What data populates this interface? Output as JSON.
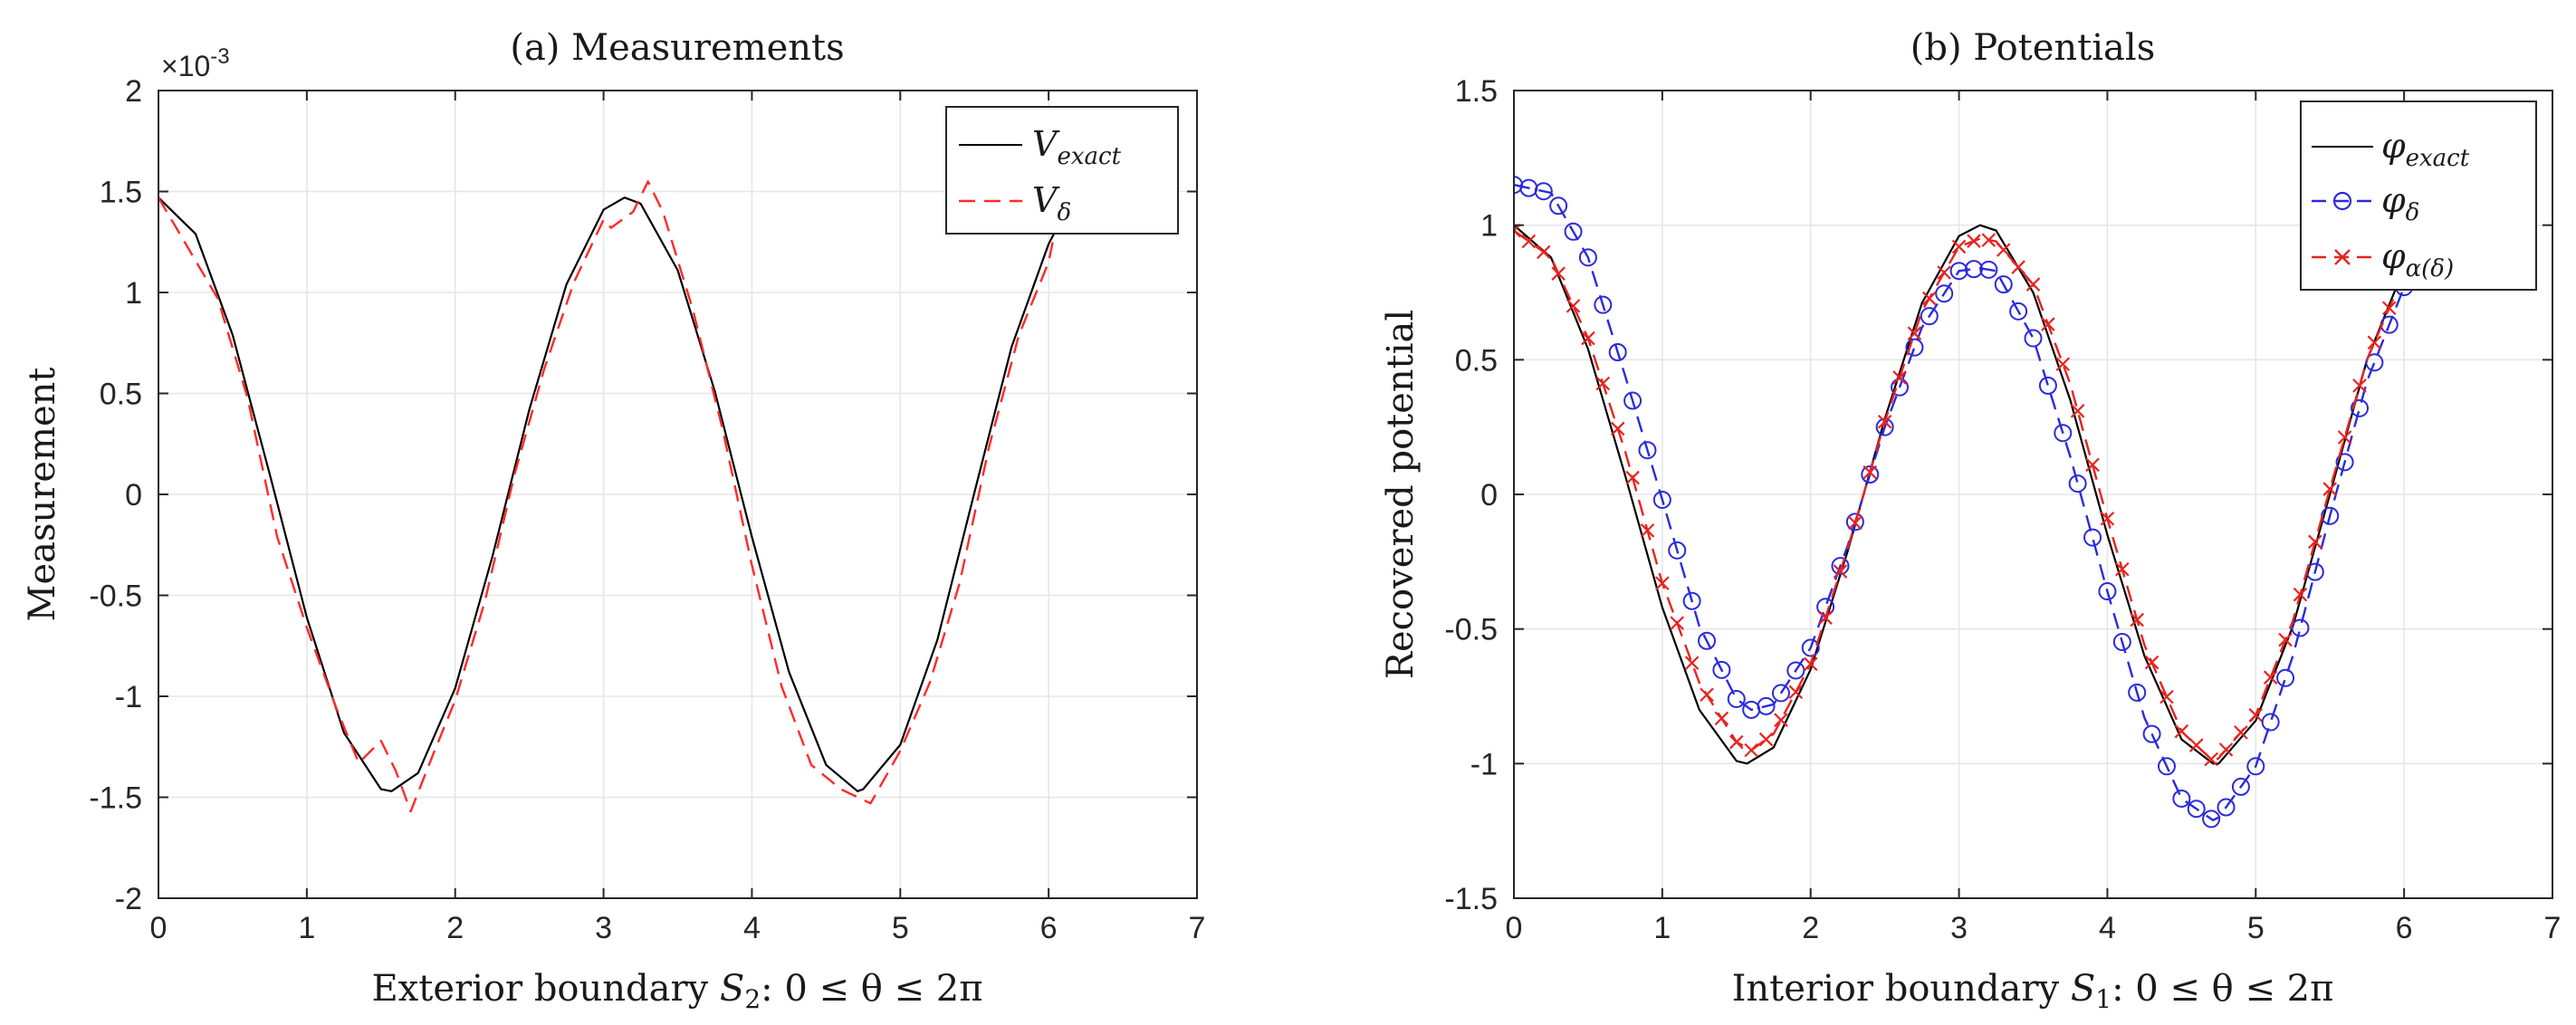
{
  "chart_data": [
    {
      "type": "line",
      "title": "(a) Measurements",
      "xlabel_prefix": "Exterior boundary ",
      "xlabel_sym": "S",
      "xlabel_sub": "2",
      "xlabel_suffix": ": 0 ≤ θ ≤ 2π",
      "ylabel": "Measurement",
      "exponent_base": "×10",
      "exponent_power": "-3",
      "xlim": [
        0,
        7
      ],
      "ylim": [
        -2,
        2
      ],
      "xticks": [
        0,
        1,
        2,
        3,
        4,
        5,
        6,
        7
      ],
      "yticks": [
        -2,
        -1.5,
        -1,
        -0.5,
        0,
        0.5,
        1,
        1.5,
        2
      ],
      "ytick_labels": [
        "-2",
        "-1.5",
        "-1",
        "-0.5",
        "0",
        "0.5",
        "1",
        "1.5",
        "2"
      ],
      "grid": true,
      "legend_position": "top-right",
      "series": [
        {
          "name": "V_exact",
          "label_main": "V",
          "label_sub": "exact",
          "color": "#000000",
          "style": "solid",
          "marker": "none",
          "function": "1.47*cos(2x)",
          "x": [
            0,
            0.25,
            0.5,
            0.75,
            1.0,
            1.25,
            1.5,
            1.571,
            1.75,
            2.0,
            2.25,
            2.5,
            2.75,
            3.0,
            3.142,
            3.25,
            3.5,
            3.75,
            4.0,
            4.25,
            4.5,
            4.712,
            4.75,
            5.0,
            5.25,
            5.5,
            5.75,
            6.0,
            6.05
          ],
          "y": [
            1.47,
            1.29,
            0.79,
            0.1,
            -0.61,
            -1.18,
            -1.46,
            -1.47,
            -1.38,
            -0.96,
            -0.31,
            0.42,
            1.04,
            1.41,
            1.47,
            1.44,
            1.11,
            0.51,
            -0.21,
            -0.88,
            -1.34,
            -1.47,
            -1.46,
            -1.24,
            -0.72,
            0.01,
            0.73,
            1.24,
            1.31
          ]
        },
        {
          "name": "V_delta",
          "label_main": "V",
          "label_sub": "δ",
          "color": "#ff2a2a",
          "style": "dashed",
          "marker": "none",
          "x": [
            0,
            0.2,
            0.4,
            0.6,
            0.8,
            1.0,
            1.2,
            1.35,
            1.5,
            1.6,
            1.7,
            1.85,
            2.0,
            2.2,
            2.4,
            2.6,
            2.8,
            3.0,
            3.05,
            3.2,
            3.3,
            3.4,
            3.6,
            3.8,
            4.0,
            4.2,
            4.4,
            4.6,
            4.8,
            5.0,
            5.2,
            5.4,
            5.6,
            5.8,
            6.0,
            6.05
          ],
          "y": [
            1.47,
            1.22,
            0.97,
            0.48,
            -0.21,
            -0.66,
            -1.06,
            -1.33,
            -1.22,
            -1.37,
            -1.57,
            -1.29,
            -1.02,
            -0.53,
            0.1,
            0.62,
            1.05,
            1.36,
            1.32,
            1.4,
            1.55,
            1.4,
            0.92,
            0.33,
            -0.35,
            -0.95,
            -1.34,
            -1.46,
            -1.53,
            -1.27,
            -0.93,
            -0.44,
            0.24,
            0.79,
            1.15,
            1.33
          ]
        }
      ]
    },
    {
      "type": "line",
      "title": "(b) Potentials",
      "xlabel_prefix": "Interior boundary ",
      "xlabel_sym": "S",
      "xlabel_sub": "1",
      "xlabel_suffix": ": 0 ≤ θ ≤ 2π",
      "ylabel": "Recovered potential",
      "xlim": [
        0,
        7
      ],
      "ylim": [
        -1.5,
        1.5
      ],
      "xticks": [
        0,
        1,
        2,
        3,
        4,
        5,
        6,
        7
      ],
      "yticks": [
        -1.5,
        -1,
        -0.5,
        0,
        0.5,
        1,
        1.5
      ],
      "ytick_labels": [
        "-1.5",
        "-1",
        "-0.5",
        "0",
        "0.5",
        "1",
        "1.5"
      ],
      "grid": true,
      "legend_position": "top-right",
      "series": [
        {
          "name": "phi_exact",
          "label_main": "φ",
          "label_sub": "exact",
          "color": "#000000",
          "style": "solid",
          "marker": "none",
          "function": "cos(2x)",
          "x": [
            0,
            0.25,
            0.5,
            0.75,
            1.0,
            1.25,
            1.5,
            1.571,
            1.75,
            2.0,
            2.25,
            2.5,
            2.75,
            3.0,
            3.142,
            3.25,
            3.5,
            3.75,
            4.0,
            4.25,
            4.5,
            4.712,
            4.75,
            5.0,
            5.25,
            5.5,
            5.75,
            6.0,
            6.05
          ],
          "y": [
            1.0,
            0.88,
            0.54,
            0.07,
            -0.42,
            -0.8,
            -0.99,
            -1.0,
            -0.94,
            -0.65,
            -0.21,
            0.28,
            0.71,
            0.96,
            1.0,
            0.98,
            0.75,
            0.35,
            -0.15,
            -0.6,
            -0.91,
            -1.0,
            -1.0,
            -0.84,
            -0.49,
            0.0,
            0.5,
            0.84,
            0.89
          ]
        },
        {
          "name": "phi_delta",
          "label_main": "φ",
          "label_sub": "δ",
          "color": "#2b2bdc",
          "style": "dashed",
          "marker": "circle",
          "function": "0.18 - 0.185*x + cos(2x)*(0.97 - 0.08*x) + 0.035*x^2 + ...",
          "x": [
            0,
            0.25,
            0.5,
            0.75,
            1.0,
            1.25,
            1.5,
            1.6,
            1.75,
            2.0,
            2.25,
            2.5,
            2.75,
            3.0,
            3.142,
            3.25,
            3.5,
            3.75,
            4.0,
            4.25,
            4.5,
            4.712,
            4.75,
            5.0,
            5.25,
            5.5,
            5.75,
            6.0,
            6.05
          ],
          "y": [
            1.15,
            1.12,
            0.88,
            0.44,
            -0.02,
            -0.49,
            -0.76,
            -0.8,
            -0.78,
            -0.57,
            -0.19,
            0.25,
            0.62,
            0.83,
            0.84,
            0.83,
            0.58,
            0.14,
            -0.36,
            -0.83,
            -1.13,
            -1.21,
            -1.2,
            -1.01,
            -0.6,
            -0.08,
            0.42,
            0.77,
            0.8
          ]
        },
        {
          "name": "phi_alpha_delta",
          "label_main": "φ",
          "label_sub": "α(δ)",
          "color": "#e8231f",
          "style": "dashed",
          "marker": "x",
          "x": [
            0,
            0.25,
            0.5,
            0.75,
            1.0,
            1.25,
            1.5,
            1.6,
            1.75,
            2.0,
            2.25,
            2.5,
            2.75,
            3.0,
            3.142,
            3.25,
            3.5,
            3.75,
            4.0,
            4.25,
            4.5,
            4.712,
            4.75,
            5.0,
            5.25,
            5.5,
            5.75,
            6.0,
            6.05
          ],
          "y": [
            0.98,
            0.88,
            0.58,
            0.16,
            -0.33,
            -0.7,
            -0.92,
            -0.95,
            -0.89,
            -0.63,
            -0.2,
            0.27,
            0.68,
            0.92,
            0.95,
            0.94,
            0.78,
            0.41,
            -0.09,
            -0.56,
            -0.88,
            -0.99,
            -0.98,
            -0.82,
            -0.47,
            0.02,
            0.5,
            0.82,
            0.88
          ]
        }
      ]
    }
  ]
}
